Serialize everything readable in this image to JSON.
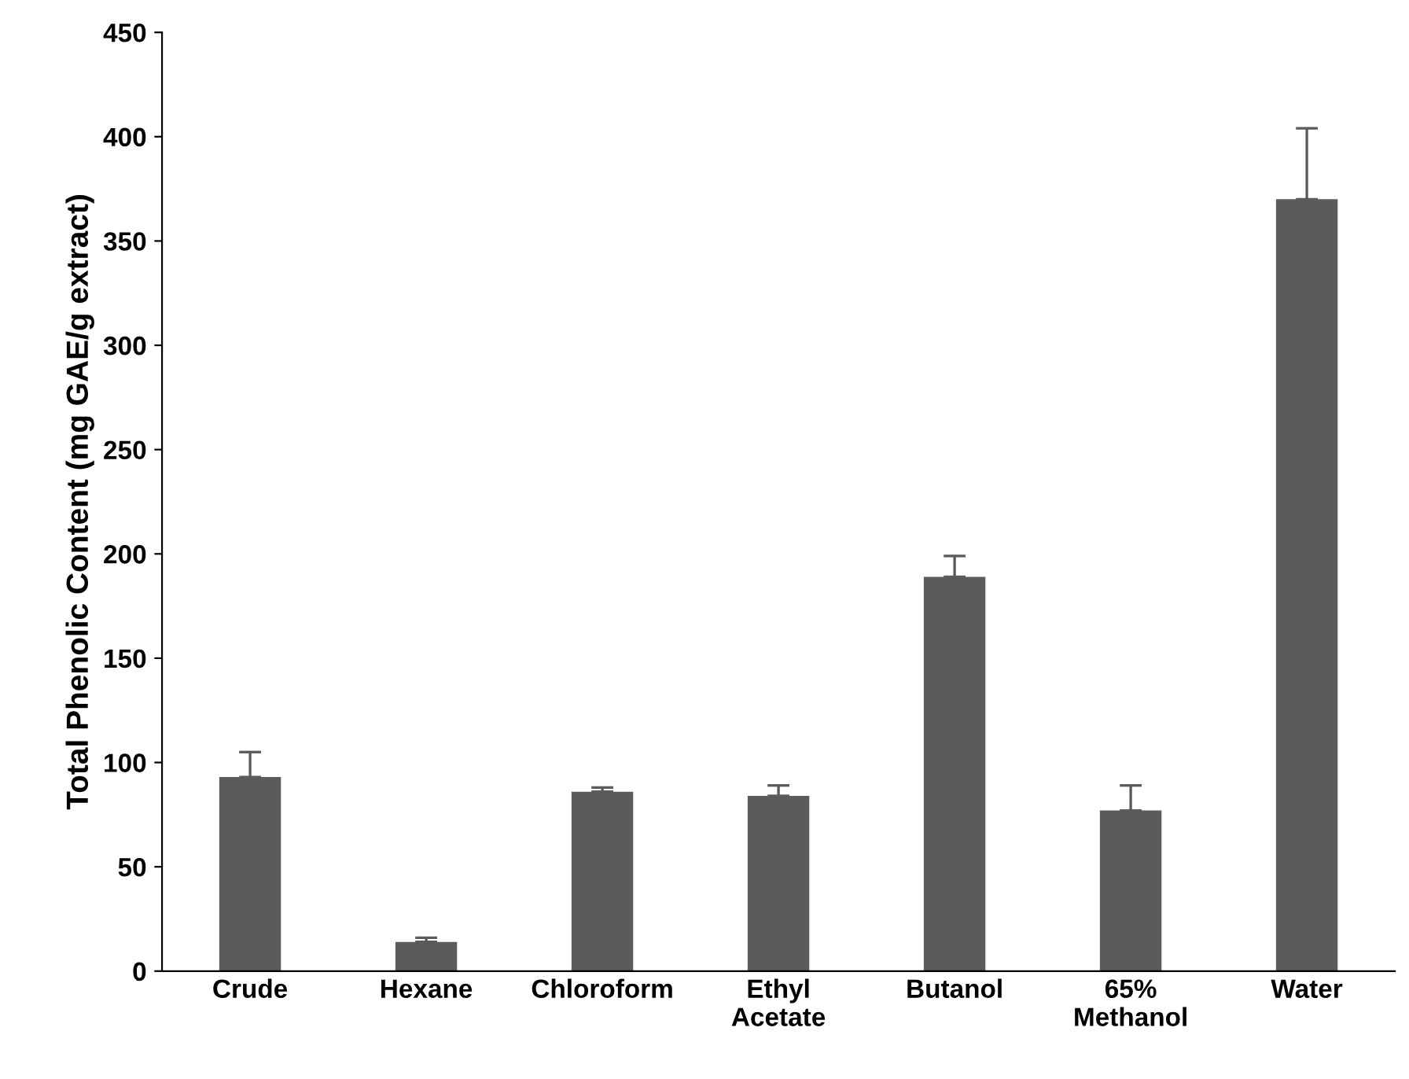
{
  "chart_data": {
    "type": "bar",
    "ylabel": "Total Phenolic Content (mg GAE/g extract)",
    "categories": [
      "Crude",
      "Hexane",
      "Chloroform",
      "Ethyl\nAcetate",
      "Butanol",
      "65%\nMethanol",
      "Water"
    ],
    "values": [
      93,
      14,
      86,
      84,
      189,
      77,
      370
    ],
    "errors": [
      [
        93,
        105
      ],
      [
        14,
        16
      ],
      [
        86,
        88
      ],
      [
        84,
        89
      ],
      [
        189,
        199
      ],
      [
        77,
        89
      ],
      [
        370,
        404
      ]
    ],
    "color": "#5b5b5b",
    "ylim": [
      0,
      450
    ],
    "yticks": [
      0,
      50,
      100,
      150,
      200,
      250,
      300,
      350,
      400,
      450
    ],
    "grid": false,
    "legend": false
  }
}
